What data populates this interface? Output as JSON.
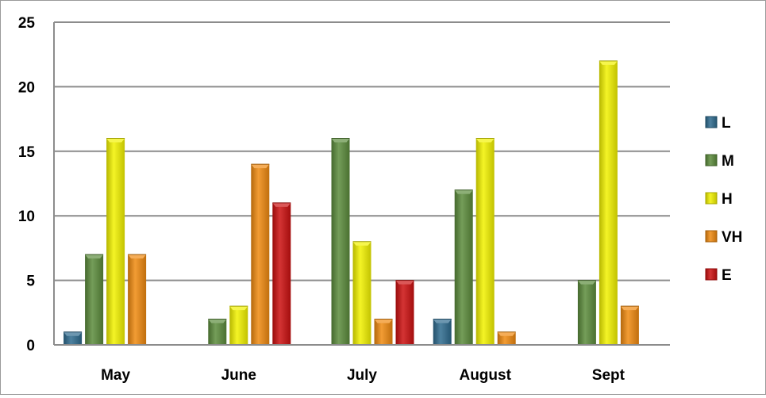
{
  "chart_data": {
    "type": "bar",
    "title": "",
    "xlabel": "",
    "ylabel": "",
    "categories": [
      "May",
      "June",
      "July",
      "August",
      "Sept"
    ],
    "series": [
      {
        "name": "L",
        "color": "#2e6b8e",
        "values": [
          1,
          0,
          0,
          2,
          0
        ]
      },
      {
        "name": "M",
        "color": "#5c8c3c",
        "values": [
          7,
          2,
          16,
          12,
          5
        ]
      },
      {
        "name": "H",
        "color": "#f2f200",
        "values": [
          16,
          3,
          8,
          16,
          22
        ]
      },
      {
        "name": "VH",
        "color": "#f08a10",
        "values": [
          7,
          14,
          2,
          1,
          3
        ]
      },
      {
        "name": "E",
        "color": "#cc1010",
        "values": [
          0,
          11,
          5,
          0,
          0
        ]
      }
    ],
    "ylim": [
      0,
      25
    ],
    "yticks": [
      "0",
      "5",
      "10",
      "15",
      "20",
      "25"
    ],
    "grid": true,
    "legend": "right"
  }
}
